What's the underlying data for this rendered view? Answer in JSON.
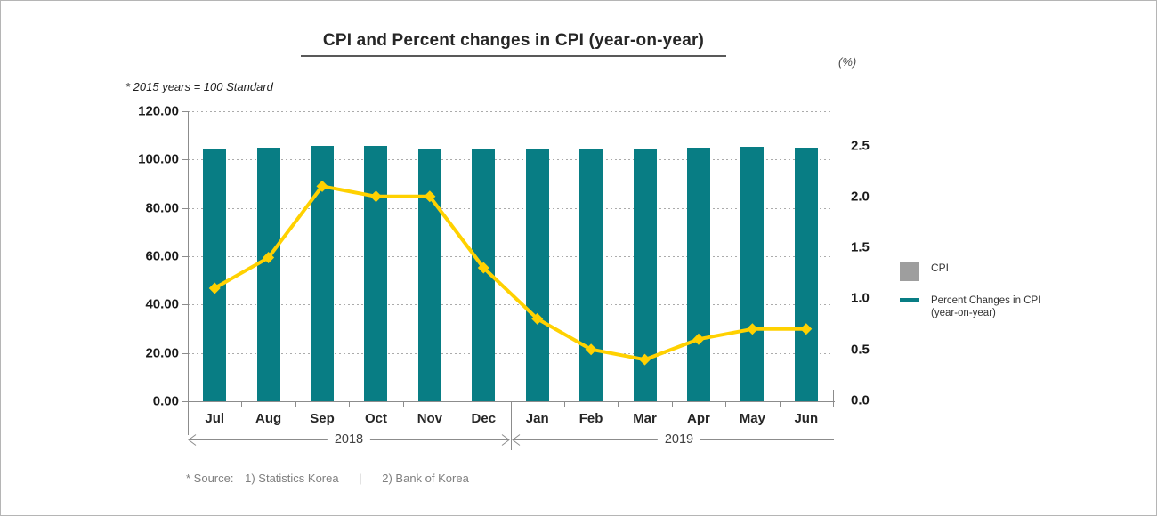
{
  "title": "CPI and Percent changes in CPI (year-on-year)",
  "unit_label": "(%)",
  "standard_note": "* 2015 years = 100 Standard",
  "source": {
    "prefix": "* Source:",
    "item1": "1) Statistics Korea",
    "separator": "|",
    "item2": "2) Bank of Korea"
  },
  "legend": {
    "items": [
      {
        "label": "CPI",
        "swatch": "square",
        "color": "#9e9e9e"
      },
      {
        "label": "Percent Changes in CPI (year-on-year)",
        "swatch": "line",
        "color": "#087d84"
      }
    ]
  },
  "colors": {
    "bar_teal": "#087d84",
    "line_yellow": "#ffd100",
    "axis_gray": "#8c8c8c",
    "legend_gray": "#9e9e9e"
  },
  "chart_data": {
    "type": "combo-bar-line",
    "categories": [
      "Jul",
      "Aug",
      "Sep",
      "Oct",
      "Nov",
      "Dec",
      "Jan",
      "Feb",
      "Mar",
      "Apr",
      "May",
      "Jun"
    ],
    "year_groups": [
      {
        "label": "2018",
        "start_index": 0,
        "end_index": 5
      },
      {
        "label": "2019",
        "start_index": 6,
        "end_index": 11
      }
    ],
    "series": [
      {
        "name": "CPI",
        "type": "bar",
        "axis": "left",
        "values": [
          104.4,
          104.8,
          105.6,
          105.5,
          104.7,
          104.4,
          104.2,
          104.7,
          104.5,
          104.9,
          105.1,
          104.9
        ]
      },
      {
        "name": "Percent Changes in CPI (year-on-year)",
        "type": "line",
        "axis": "right",
        "values": [
          1.1,
          1.4,
          2.1,
          2.0,
          2.0,
          1.3,
          0.8,
          0.5,
          0.4,
          0.6,
          0.7,
          0.7
        ]
      }
    ],
    "left_axis": {
      "min": 0,
      "max": 120,
      "tick_labels": [
        "0.00",
        "20.00",
        "40.00",
        "60.00",
        "80.00",
        "100.00",
        "120.00"
      ],
      "tick_values": [
        0,
        20,
        40,
        60,
        80,
        100,
        120
      ]
    },
    "right_axis": {
      "min": 0,
      "max": 2.5,
      "tick_labels": [
        "0.0",
        "0.5",
        "1.0",
        "1.5",
        "2.0",
        "2.5"
      ],
      "tick_values": [
        0,
        0.5,
        1,
        1.5,
        2,
        2.5
      ]
    },
    "grid": "dashed-horizontal",
    "legend_position": "right"
  }
}
